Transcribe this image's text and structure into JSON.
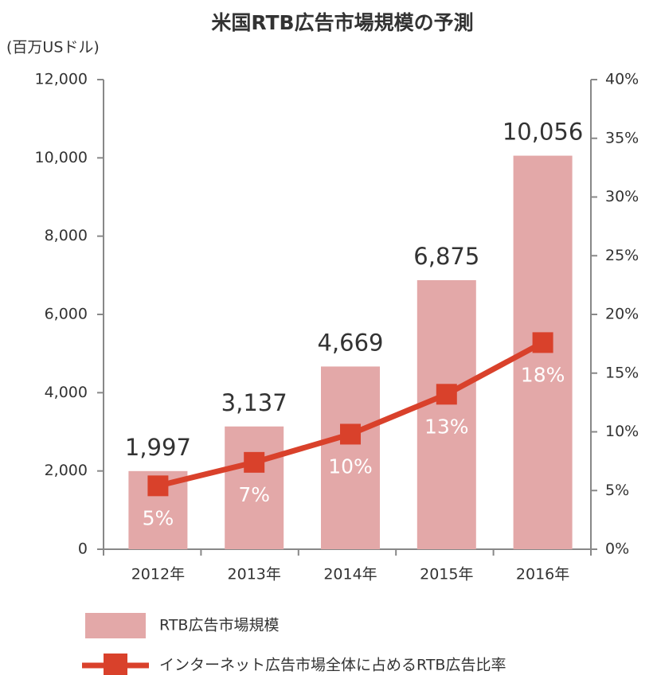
{
  "chart_data": {
    "type": "bar-line",
    "title": "米国RTB広告市場規模の予測",
    "y_axis_label": "(百万USドル)",
    "categories": [
      "2012年",
      "2013年",
      "2014年",
      "2015年",
      "2016年"
    ],
    "series": [
      {
        "name": "RTB広告市場規模",
        "type": "bar",
        "color": "#e3a8a8",
        "values": [
          1997,
          3137,
          4669,
          6875,
          10056
        ],
        "value_labels": [
          "1,997",
          "3,137",
          "4,669",
          "6,875",
          "10,056"
        ]
      },
      {
        "name": "インターネット広告市場全体に占めるRTB広告比率",
        "type": "line",
        "axis": "y2",
        "color": "#d9412b",
        "values": [
          5.4,
          7.4,
          9.8,
          13.2,
          17.6
        ],
        "value_labels": [
          "5%",
          "7%",
          "10%",
          "13%",
          "18%"
        ]
      }
    ],
    "ylim": [
      0,
      12000
    ],
    "yticks": [
      0,
      {
        "value": 2000,
        "label": "2,000"
      },
      {
        "value": 4000,
        "label": "4,000"
      },
      {
        "value": 6000,
        "label": "6,000"
      },
      {
        "value": 8000,
        "label": "8,000"
      },
      {
        "value": 10000,
        "label": "10,000"
      },
      {
        "value": 12000,
        "label": "12,000"
      }
    ],
    "y2lim": [
      0,
      40
    ],
    "y2ticks": [
      {
        "value": 0,
        "label": "0%"
      },
      {
        "value": 5,
        "label": "5%"
      },
      {
        "value": 10,
        "label": "10%"
      },
      {
        "value": 15,
        "label": "15%"
      },
      {
        "value": 20,
        "label": "20%"
      },
      {
        "value": 25,
        "label": "25%"
      },
      {
        "value": 30,
        "label": "30%"
      },
      {
        "value": 35,
        "label": "35%"
      },
      {
        "value": 40,
        "label": "40%"
      }
    ],
    "legend": "bottom"
  }
}
